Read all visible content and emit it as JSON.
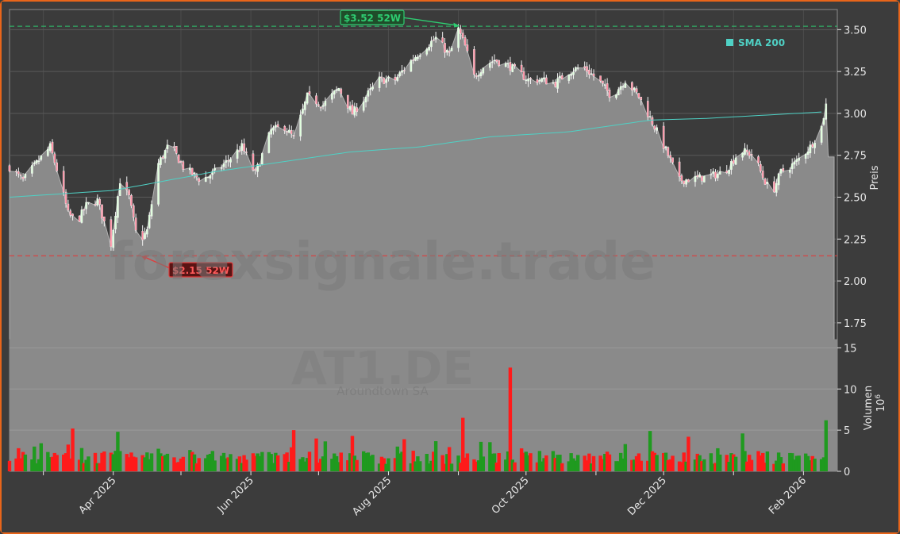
{
  "chart_data": {
    "type": "candlestick",
    "ticker": "AT1.DE",
    "company": "Aroundtown SA",
    "watermark": "forexsignale.trade",
    "price_axis": {
      "label": "Preis",
      "ylim": [
        1.65,
        3.62
      ],
      "ticks": [
        "1.75",
        "2.00",
        "2.25",
        "2.50",
        "2.75",
        "3.00",
        "3.25",
        "3.50"
      ]
    },
    "volume_axis": {
      "label": "Volumen",
      "unit_exponent": "10",
      "unit_power": "6",
      "ylim": [
        0,
        16
      ],
      "ticks": [
        "0",
        "5",
        "10",
        "15"
      ]
    },
    "x_axis": {
      "ticks": [
        "Apr 2025",
        "Jun 2025",
        "Aug 2025",
        "Oct 2025",
        "Dec 2025",
        "Feb 2026"
      ],
      "start": "2025-02-14",
      "end": "2026-02-16"
    },
    "legend": {
      "label": "SMA 200",
      "position": "top-right"
    },
    "annotations": {
      "high": {
        "label": "$3.52 52W",
        "value": 3.52
      },
      "low": {
        "label": "$2.15 52W",
        "value": 2.15
      }
    },
    "price_anchors": [
      [
        "2025-02-14",
        2.68
      ],
      [
        "2025-02-20",
        2.6
      ],
      [
        "2025-02-27",
        2.72
      ],
      [
        "2025-03-04",
        2.8
      ],
      [
        "2025-03-08",
        2.62
      ],
      [
        "2025-03-12",
        2.4
      ],
      [
        "2025-03-16",
        2.35
      ],
      [
        "2025-03-20",
        2.45
      ],
      [
        "2025-03-25",
        2.48
      ],
      [
        "2025-03-31",
        2.22
      ],
      [
        "2025-04-04",
        2.6
      ],
      [
        "2025-04-08",
        2.5
      ],
      [
        "2025-04-12",
        2.22
      ],
      [
        "2025-04-16",
        2.3
      ],
      [
        "2025-04-21",
        2.7
      ],
      [
        "2025-04-26",
        2.82
      ],
      [
        "2025-05-02",
        2.68
      ],
      [
        "2025-05-10",
        2.6
      ],
      [
        "2025-05-16",
        2.65
      ],
      [
        "2025-05-22",
        2.72
      ],
      [
        "2025-05-28",
        2.8
      ],
      [
        "2025-06-03",
        2.64
      ],
      [
        "2025-06-10",
        2.9
      ],
      [
        "2025-06-16",
        2.92
      ],
      [
        "2025-06-20",
        2.85
      ],
      [
        "2025-06-26",
        3.1
      ],
      [
        "2025-07-03",
        3.05
      ],
      [
        "2025-07-10",
        3.15
      ],
      [
        "2025-07-16",
        3.0
      ],
      [
        "2025-07-22",
        3.1
      ],
      [
        "2025-07-28",
        3.2
      ],
      [
        "2025-08-04",
        3.2
      ],
      [
        "2025-08-10",
        3.3
      ],
      [
        "2025-08-16",
        3.38
      ],
      [
        "2025-08-22",
        3.45
      ],
      [
        "2025-08-28",
        3.35
      ],
      [
        "2025-09-01",
        3.5
      ],
      [
        "2025-09-04",
        3.4
      ],
      [
        "2025-09-08",
        3.22
      ],
      [
        "2025-09-12",
        3.28
      ],
      [
        "2025-09-17",
        3.32
      ],
      [
        "2025-09-24",
        3.28
      ],
      [
        "2025-10-02",
        3.2
      ],
      [
        "2025-10-08",
        3.2
      ],
      [
        "2025-10-14",
        3.18
      ],
      [
        "2025-10-20",
        3.25
      ],
      [
        "2025-10-26",
        3.28
      ],
      [
        "2025-11-02",
        3.2
      ],
      [
        "2025-11-08",
        3.1
      ],
      [
        "2025-11-14",
        3.2
      ],
      [
        "2025-11-20",
        3.1
      ],
      [
        "2025-11-24",
        3.0
      ],
      [
        "2025-11-27",
        2.92
      ],
      [
        "2025-12-02",
        2.78
      ],
      [
        "2025-12-08",
        2.6
      ],
      [
        "2025-12-14",
        2.61
      ],
      [
        "2025-12-20",
        2.62
      ],
      [
        "2025-12-28",
        2.65
      ],
      [
        "2026-01-04",
        2.78
      ],
      [
        "2026-01-10",
        2.75
      ],
      [
        "2026-01-14",
        2.62
      ],
      [
        "2026-01-18",
        2.52
      ],
      [
        "2026-01-22",
        2.65
      ],
      [
        "2026-01-28",
        2.7
      ],
      [
        "2026-02-04",
        2.8
      ],
      [
        "2026-02-09",
        2.92
      ],
      [
        "2026-02-11",
        3.05
      ],
      [
        "2026-02-12",
        2.74
      ],
      [
        "2026-02-16",
        2.74
      ]
    ],
    "sma_anchors": [
      [
        "2025-02-14",
        2.5
      ],
      [
        "2025-04-01",
        2.54
      ],
      [
        "2025-05-15",
        2.65
      ],
      [
        "2025-07-15",
        2.77
      ],
      [
        "2025-08-15",
        2.8
      ],
      [
        "2025-09-15",
        2.86
      ],
      [
        "2025-10-20",
        2.89
      ],
      [
        "2025-11-25",
        2.96
      ],
      [
        "2025-12-20",
        2.97
      ],
      [
        "2026-02-11",
        3.01
      ]
    ],
    "volume_spikes": [
      [
        "2025-03-14",
        5.2
      ],
      [
        "2025-03-23",
        4.4
      ],
      [
        "2025-04-03",
        4.8
      ],
      [
        "2025-06-20",
        5.0
      ],
      [
        "2025-07-16",
        4.3
      ],
      [
        "2025-08-08",
        3.9
      ],
      [
        "2025-09-03",
        6.5
      ],
      [
        "2025-09-24",
        12.6
      ],
      [
        "2025-11-25",
        4.9
      ],
      [
        "2025-12-12",
        4.2
      ],
      [
        "2026-01-05",
        4.6
      ],
      [
        "2026-01-18",
        4.9
      ],
      [
        "2026-02-11",
        6.2
      ]
    ],
    "colors": {
      "up": "#1f9a1f",
      "down": "#ff1a1a",
      "sma": "#4fd1c5",
      "area": "#8a8a8a",
      "high": "#2ecc71",
      "low": "#e03c3c",
      "grid": "#5a5a5a"
    }
  }
}
